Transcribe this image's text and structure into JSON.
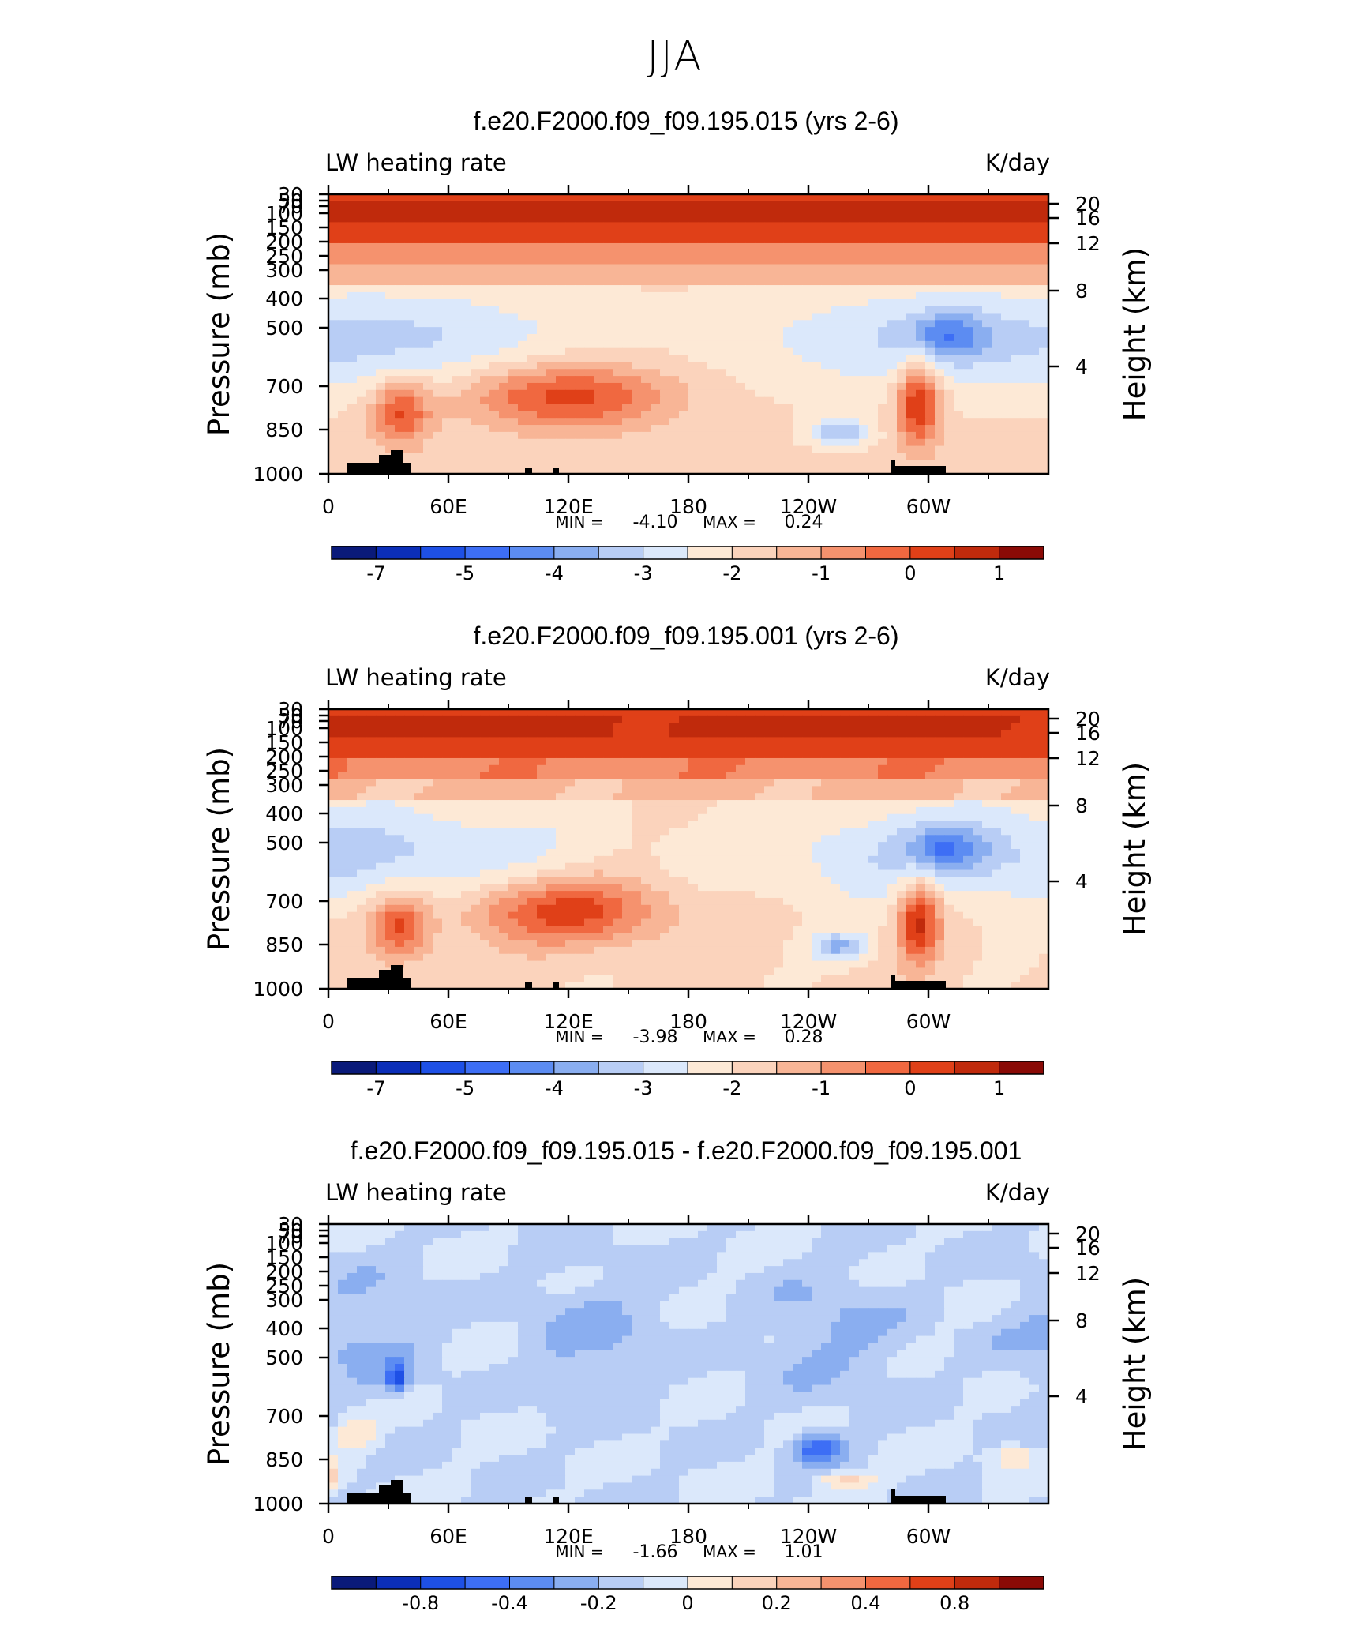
{
  "figure": {
    "title": "JJA"
  },
  "chart_data": [
    {
      "type": "heatmap",
      "title": "f.e20.F2000.f09_f09.195.015 (yrs 2-6)",
      "left_string": "LW heating rate",
      "right_string": "K/day",
      "ylabel": "Pressure (mb)",
      "ylabel_right": "Height (km)",
      "xticks": [
        "0",
        "60E",
        "120E",
        "180",
        "120W",
        "60W"
      ],
      "yticks": [
        "30",
        "50",
        "70",
        "100",
        "150",
        "200",
        "250",
        "300",
        "400",
        "500",
        "700",
        "850",
        "1000"
      ],
      "yticks_right": [
        "20",
        "16",
        "12",
        "8",
        "4"
      ],
      "stats": {
        "min_label": "MIN =",
        "min": "-4.10",
        "max_label": "MAX =",
        "max": "0.24"
      },
      "colorbar_labels": [
        "-7",
        "-5",
        "-4",
        "-3",
        "-2",
        "-1",
        "0",
        "1"
      ],
      "colorbar_colors": [
        "#0a1a7a",
        "#0b2eb8",
        "#1e50e6",
        "#3d6ef5",
        "#5c8cf2",
        "#8aaef0",
        "#b8cdf5",
        "#dbe8fb",
        "#fde9d6",
        "#fbd3bc",
        "#f8b596",
        "#f5926e",
        "#f06840",
        "#e04018",
        "#c02a0c",
        "#8a0a06"
      ],
      "field": "lw_heating_a",
      "bottom_shaded": true
    },
    {
      "type": "heatmap",
      "title": "f.e20.F2000.f09_f09.195.001 (yrs 2-6)",
      "left_string": "LW heating rate",
      "right_string": "K/day",
      "ylabel": "Pressure (mb)",
      "ylabel_right": "Height (km)",
      "xticks": [
        "0",
        "60E",
        "120E",
        "180",
        "120W",
        "60W"
      ],
      "yticks": [
        "30",
        "50",
        "70",
        "100",
        "150",
        "200",
        "250",
        "300",
        "400",
        "500",
        "700",
        "850",
        "1000"
      ],
      "yticks_right": [
        "20",
        "16",
        "12",
        "8",
        "4"
      ],
      "stats": {
        "min_label": "MIN =",
        "min": "-3.98",
        "max_label": "MAX =",
        "max": "0.28"
      },
      "colorbar_labels": [
        "-7",
        "-5",
        "-4",
        "-3",
        "-2",
        "-1",
        "0",
        "1"
      ],
      "colorbar_colors": [
        "#0a1a7a",
        "#0b2eb8",
        "#1e50e6",
        "#3d6ef5",
        "#5c8cf2",
        "#8aaef0",
        "#b8cdf5",
        "#dbe8fb",
        "#fde9d6",
        "#fbd3bc",
        "#f8b596",
        "#f5926e",
        "#f06840",
        "#e04018",
        "#c02a0c",
        "#8a0a06"
      ],
      "field": "lw_heating_b",
      "bottom_shaded": true
    },
    {
      "type": "heatmap",
      "title": "f.e20.F2000.f09_f09.195.015 - f.e20.F2000.f09_f09.195.001",
      "left_string": "LW heating rate",
      "right_string": "K/day",
      "ylabel": "Pressure (mb)",
      "ylabel_right": "Height (km)",
      "xticks": [
        "0",
        "60E",
        "120E",
        "180",
        "120W",
        "60W"
      ],
      "yticks": [
        "30",
        "50",
        "70",
        "100",
        "150",
        "200",
        "250",
        "300",
        "400",
        "500",
        "700",
        "850",
        "1000"
      ],
      "yticks_right": [
        "20",
        "16",
        "12",
        "8",
        "4"
      ],
      "stats": {
        "min_label": "MIN =",
        "min": "-1.66",
        "max_label": "MAX =",
        "max": "1.01"
      },
      "colorbar_labels": [
        "-0.8",
        "-0.4",
        "-0.2",
        "0",
        "0.2",
        "0.4",
        "0.8"
      ],
      "colorbar_colors": [
        "#0a1a7a",
        "#0b2eb8",
        "#1e50e6",
        "#3d6ef5",
        "#5c8cf2",
        "#8aaef0",
        "#b8cdf5",
        "#dbe8fb",
        "#fde9d6",
        "#fbd3bc",
        "#f8b596",
        "#f5926e",
        "#f06840",
        "#e04018",
        "#c02a0c",
        "#8a0a06"
      ],
      "field": "lw_heating_diff",
      "bottom_shaded": true
    }
  ]
}
